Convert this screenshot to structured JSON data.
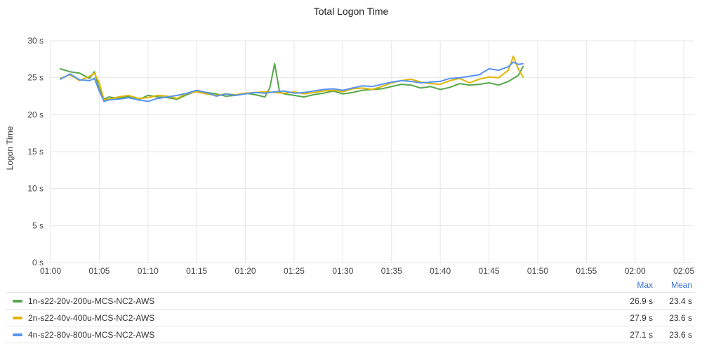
{
  "chart_data": {
    "type": "line",
    "title": "Total Logon Time",
    "xlabel": "",
    "ylabel": "Logon Time",
    "y_unit": "s",
    "ylim": [
      0,
      30
    ],
    "yticks": [
      0,
      5,
      10,
      15,
      20,
      25,
      30
    ],
    "yticklabels": [
      "0 s",
      "5 s",
      "10 s",
      "15 s",
      "20 s",
      "25 s",
      "30 s"
    ],
    "xticklabels": [
      "01:00",
      "01:05",
      "01:10",
      "01:15",
      "01:20",
      "01:25",
      "01:30",
      "01:35",
      "01:40",
      "01:45",
      "01:50",
      "01:55",
      "02:00",
      "02:05"
    ],
    "xlim": [
      "01:00",
      "02:06"
    ],
    "grid": true,
    "legend_placement": "bottom",
    "legend_columns": [
      "Max",
      "Mean"
    ],
    "series": [
      {
        "name": "1n-s22-20v-200u-MCS-NC2-AWS",
        "color": "#56a64b",
        "max": "26.9 s",
        "mean": "23.4 s",
        "points": [
          [
            "01:01",
            26.2
          ],
          [
            "01:02",
            25.8
          ],
          [
            "01:03",
            25.6
          ],
          [
            "01:04",
            24.9
          ],
          [
            "01:04.5",
            25.8
          ],
          [
            "01:05",
            23.5
          ],
          [
            "01:05.5",
            22.1
          ],
          [
            "01:06",
            22.4
          ],
          [
            "01:07",
            22.2
          ],
          [
            "01:08",
            22.5
          ],
          [
            "01:09",
            22.0
          ],
          [
            "01:10",
            22.6
          ],
          [
            "01:11",
            22.4
          ],
          [
            "01:12",
            22.3
          ],
          [
            "01:13",
            22.1
          ],
          [
            "01:14",
            22.7
          ],
          [
            "01:15",
            23.2
          ],
          [
            "01:16",
            23.0
          ],
          [
            "01:17",
            22.8
          ],
          [
            "01:18",
            22.5
          ],
          [
            "01:19",
            22.6
          ],
          [
            "01:20",
            22.9
          ],
          [
            "01:21",
            22.7
          ],
          [
            "01:22",
            22.4
          ],
          [
            "01:22.5",
            23.6
          ],
          [
            "01:23",
            26.9
          ],
          [
            "01:23.5",
            23.1
          ],
          [
            "01:24",
            22.8
          ],
          [
            "01:25",
            22.6
          ],
          [
            "01:26",
            22.4
          ],
          [
            "01:27",
            22.7
          ],
          [
            "01:28",
            22.9
          ],
          [
            "01:29",
            23.2
          ],
          [
            "01:30",
            22.8
          ],
          [
            "01:31",
            23.0
          ],
          [
            "01:32",
            23.3
          ],
          [
            "01:33",
            23.4
          ],
          [
            "01:34",
            23.5
          ],
          [
            "01:35",
            23.8
          ],
          [
            "01:36",
            24.1
          ],
          [
            "01:37",
            24.0
          ],
          [
            "01:38",
            23.6
          ],
          [
            "01:39",
            23.8
          ],
          [
            "01:40",
            23.4
          ],
          [
            "01:41",
            23.7
          ],
          [
            "01:42",
            24.2
          ],
          [
            "01:43",
            24.0
          ],
          [
            "01:44",
            24.1
          ],
          [
            "01:45",
            24.3
          ],
          [
            "01:46",
            24.0
          ],
          [
            "01:47",
            24.5
          ],
          [
            "01:48",
            25.3
          ],
          [
            "01:48.5",
            26.5
          ]
        ]
      },
      {
        "name": "2n-s22-40v-400u-MCS-NC2-AWS",
        "color": "#e0b400",
        "max": "27.9 s",
        "mean": "23.6 s",
        "points": [
          [
            "01:01",
            24.9
          ],
          [
            "01:02",
            25.4
          ],
          [
            "01:03",
            24.6
          ],
          [
            "01:04",
            25.2
          ],
          [
            "01:04.5",
            25.6
          ],
          [
            "01:05",
            24.3
          ],
          [
            "01:05.5",
            22.0
          ],
          [
            "01:06",
            22.1
          ],
          [
            "01:07",
            22.4
          ],
          [
            "01:08",
            22.6
          ],
          [
            "01:09",
            22.2
          ],
          [
            "01:10",
            22.3
          ],
          [
            "01:11",
            22.6
          ],
          [
            "01:12",
            22.5
          ],
          [
            "01:13",
            22.2
          ],
          [
            "01:14",
            22.9
          ],
          [
            "01:15",
            23.1
          ],
          [
            "01:16",
            22.8
          ],
          [
            "01:17",
            22.6
          ],
          [
            "01:18",
            22.8
          ],
          [
            "01:19",
            22.7
          ],
          [
            "01:20",
            22.9
          ],
          [
            "01:21",
            23.0
          ],
          [
            "01:22",
            23.1
          ],
          [
            "01:23",
            23.0
          ],
          [
            "01:24",
            22.9
          ],
          [
            "01:25",
            23.1
          ],
          [
            "01:26",
            22.8
          ],
          [
            "01:27",
            23.0
          ],
          [
            "01:28",
            23.2
          ],
          [
            "01:29",
            23.3
          ],
          [
            "01:30",
            23.1
          ],
          [
            "01:31",
            23.5
          ],
          [
            "01:32",
            23.6
          ],
          [
            "01:33",
            23.4
          ],
          [
            "01:34",
            23.8
          ],
          [
            "01:35",
            24.3
          ],
          [
            "01:36",
            24.6
          ],
          [
            "01:37",
            24.8
          ],
          [
            "01:38",
            24.4
          ],
          [
            "01:39",
            24.2
          ],
          [
            "01:40",
            24.1
          ],
          [
            "01:41",
            24.6
          ],
          [
            "01:42",
            24.9
          ],
          [
            "01:43",
            24.3
          ],
          [
            "01:44",
            24.8
          ],
          [
            "01:45",
            25.1
          ],
          [
            "01:46",
            25.0
          ],
          [
            "01:47",
            26.0
          ],
          [
            "01:47.5",
            27.9
          ],
          [
            "01:48",
            26.2
          ],
          [
            "01:48.5",
            25.1
          ]
        ]
      },
      {
        "name": "4n-s22-80v-800u-MCS-NC2-AWS",
        "color": "#5794f2",
        "max": "27.1 s",
        "mean": "23.6 s",
        "points": [
          [
            "01:01",
            24.8
          ],
          [
            "01:02",
            25.5
          ],
          [
            "01:03",
            24.7
          ],
          [
            "01:04",
            24.6
          ],
          [
            "01:04.5",
            24.9
          ],
          [
            "01:05",
            23.2
          ],
          [
            "01:05.5",
            21.8
          ],
          [
            "01:06",
            22.0
          ],
          [
            "01:07",
            22.1
          ],
          [
            "01:08",
            22.3
          ],
          [
            "01:09",
            22.0
          ],
          [
            "01:10",
            21.8
          ],
          [
            "01:11",
            22.2
          ],
          [
            "01:12",
            22.4
          ],
          [
            "01:13",
            22.6
          ],
          [
            "01:14",
            22.9
          ],
          [
            "01:15",
            23.3
          ],
          [
            "01:16",
            23.0
          ],
          [
            "01:17",
            22.5
          ],
          [
            "01:18",
            22.8
          ],
          [
            "01:19",
            22.6
          ],
          [
            "01:20",
            22.8
          ],
          [
            "01:21",
            23.0
          ],
          [
            "01:22",
            22.9
          ],
          [
            "01:23",
            23.1
          ],
          [
            "01:24",
            23.2
          ],
          [
            "01:25",
            22.9
          ],
          [
            "01:26",
            23.0
          ],
          [
            "01:27",
            23.2
          ],
          [
            "01:28",
            23.4
          ],
          [
            "01:29",
            23.5
          ],
          [
            "01:30",
            23.3
          ],
          [
            "01:31",
            23.6
          ],
          [
            "01:32",
            23.9
          ],
          [
            "01:33",
            23.8
          ],
          [
            "01:34",
            24.1
          ],
          [
            "01:35",
            24.4
          ],
          [
            "01:36",
            24.6
          ],
          [
            "01:37",
            24.5
          ],
          [
            "01:38",
            24.3
          ],
          [
            "01:39",
            24.4
          ],
          [
            "01:40",
            24.5
          ],
          [
            "01:41",
            24.9
          ],
          [
            "01:42",
            25.0
          ],
          [
            "01:43",
            25.2
          ],
          [
            "01:44",
            25.4
          ],
          [
            "01:45",
            26.2
          ],
          [
            "01:46",
            26.0
          ],
          [
            "01:47",
            26.5
          ],
          [
            "01:47.5",
            27.1
          ],
          [
            "01:48",
            26.8
          ],
          [
            "01:48.5",
            26.9
          ]
        ]
      }
    ]
  }
}
